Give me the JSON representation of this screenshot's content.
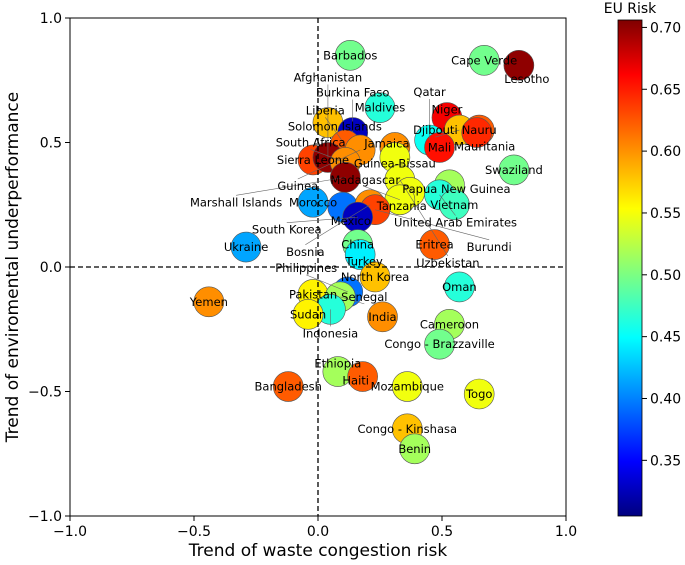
{
  "chart_data": {
    "type": "scatter",
    "xlabel": "Trend of waste congestion risk",
    "ylabel": "Trend of enviromental underperformance",
    "xlim": [
      -1,
      1
    ],
    "ylim": [
      -1,
      1
    ],
    "xticks": [
      "−1.0",
      "−0.5",
      "0.0",
      "0.5",
      "1.0"
    ],
    "yticks": [
      "−1.0",
      "−0.5",
      "0.0",
      "0.5",
      "1.0"
    ],
    "reference_lines": {
      "x": 0,
      "y": 0,
      "style": "dashed"
    },
    "colorbar": {
      "title": "EU Risk",
      "range": [
        0.305,
        0.706
      ],
      "colormap": "jet",
      "ticks": [
        "0.35",
        "0.40",
        "0.45",
        "0.50",
        "0.55",
        "0.60",
        "0.65",
        "0.70"
      ]
    },
    "points": [
      {
        "label": "Barbados",
        "x": 0.13,
        "y": 0.85,
        "risk": 0.5
      },
      {
        "label": "Cape Verde",
        "x": 0.67,
        "y": 0.83,
        "risk": 0.5
      },
      {
        "label": "Lesotho",
        "x": 0.81,
        "y": 0.81,
        "risk": 0.7
      },
      {
        "label": "Maldives",
        "x": 0.25,
        "y": 0.64,
        "risk": 0.47
      },
      {
        "label": "Solomon Islands",
        "x": 0.04,
        "y": 0.58,
        "risk": 0.58
      },
      {
        "label": "Niger",
        "x": 0.52,
        "y": 0.6,
        "risk": 0.66
      },
      {
        "label": "Djibouti",
        "x": 0.57,
        "y": 0.55,
        "risk": 0.58
      },
      {
        "label": "Nauru",
        "x": 0.65,
        "y": 0.55,
        "risk": 0.62
      },
      {
        "label": "Mauritania",
        "x": 0.64,
        "y": 0.54,
        "risk": 0.64
      },
      {
        "label": "Qatar",
        "x": 0.45,
        "y": 0.51,
        "risk": 0.46
      },
      {
        "label": "Mali",
        "x": 0.49,
        "y": 0.48,
        "risk": 0.65
      },
      {
        "label": "Burkina Faso",
        "x": 0.14,
        "y": 0.54,
        "risk": 0.33
      },
      {
        "label": "Liberia",
        "x": 0.11,
        "y": 0.49,
        "risk": 0.62
      },
      {
        "label": "Guinea",
        "x": 0.17,
        "y": 0.47,
        "risk": 0.6
      },
      {
        "label": "Guinea-Bissau",
        "x": 0.31,
        "y": 0.48,
        "risk": 0.6
      },
      {
        "label": "Jamaica",
        "x": 0.31,
        "y": 0.44,
        "risk": 0.55
      },
      {
        "label": "Sierra Leone",
        "x": -0.02,
        "y": 0.43,
        "risk": 0.63
      },
      {
        "label": "Afghanistan",
        "x": 0.04,
        "y": 0.44,
        "risk": 0.7
      },
      {
        "label": "South Africa",
        "x": 0.11,
        "y": 0.42,
        "risk": 0.6
      },
      {
        "label": "Marshall Islands",
        "x": 0.11,
        "y": 0.36,
        "risk": 0.7
      },
      {
        "label": "Swaziland",
        "x": 0.79,
        "y": 0.39,
        "risk": 0.5
      },
      {
        "label": "Uzbekistan",
        "x": 0.33,
        "y": 0.35,
        "risk": 0.55
      },
      {
        "label": "Papua New Guinea",
        "x": 0.53,
        "y": 0.33,
        "risk": 0.52
      },
      {
        "label": "Tanzania",
        "x": 0.37,
        "y": 0.3,
        "risk": 0.55
      },
      {
        "label": "United Arab Emirates",
        "x": 0.49,
        "y": 0.29,
        "risk": 0.47
      },
      {
        "label": "Madagascar",
        "x": 0.33,
        "y": 0.27,
        "risk": 0.55
      },
      {
        "label": "Vietnam",
        "x": 0.55,
        "y": 0.25,
        "risk": 0.48
      },
      {
        "label": "Morocco",
        "x": -0.02,
        "y": 0.26,
        "risk": 0.42
      },
      {
        "label": "Mexico",
        "x": 0.1,
        "y": 0.24,
        "risk": 0.4
      },
      {
        "label": "Bosnia",
        "x": 0.21,
        "y": 0.25,
        "risk": 0.6
      },
      {
        "label": "Burundi",
        "x": 0.23,
        "y": 0.23,
        "risk": 0.63
      },
      {
        "label": "South Korea",
        "x": 0.16,
        "y": 0.2,
        "risk": 0.33
      },
      {
        "label": "Ukraine",
        "x": -0.29,
        "y": 0.08,
        "risk": 0.42
      },
      {
        "label": "China",
        "x": 0.16,
        "y": 0.09,
        "risk": 0.5
      },
      {
        "label": "Turkey",
        "x": 0.17,
        "y": 0.05,
        "risk": 0.45
      },
      {
        "label": "Eritrea",
        "x": 0.47,
        "y": 0.09,
        "risk": 0.62
      },
      {
        "label": "North Korea",
        "x": 0.23,
        "y": -0.04,
        "risk": 0.58
      },
      {
        "label": "Oman",
        "x": 0.57,
        "y": -0.08,
        "risk": 0.47
      },
      {
        "label": "Philippines",
        "x": 0.12,
        "y": -0.1,
        "risk": 0.4
      },
      {
        "label": "Pakistan",
        "x": -0.02,
        "y": -0.11,
        "risk": 0.56
      },
      {
        "label": "Senegal",
        "x": 0.09,
        "y": -0.12,
        "risk": 0.52
      },
      {
        "label": "Indonesia",
        "x": 0.05,
        "y": -0.17,
        "risk": 0.47
      },
      {
        "label": "Sudan",
        "x": -0.04,
        "y": -0.19,
        "risk": 0.56
      },
      {
        "label": "Yemen",
        "x": -0.44,
        "y": -0.14,
        "risk": 0.6
      },
      {
        "label": "India",
        "x": 0.26,
        "y": -0.2,
        "risk": 0.6
      },
      {
        "label": "Cameroon",
        "x": 0.53,
        "y": -0.23,
        "risk": 0.52
      },
      {
        "label": "Congo - Brazzaville",
        "x": 0.49,
        "y": -0.31,
        "risk": 0.5
      },
      {
        "label": "Ethiopia",
        "x": 0.08,
        "y": -0.42,
        "risk": 0.52
      },
      {
        "label": "Haiti",
        "x": 0.18,
        "y": -0.44,
        "risk": 0.62
      },
      {
        "label": "Bangladesh",
        "x": -0.12,
        "y": -0.48,
        "risk": 0.62
      },
      {
        "label": "Mozambique",
        "x": 0.36,
        "y": -0.48,
        "risk": 0.55
      },
      {
        "label": "Togo",
        "x": 0.65,
        "y": -0.51,
        "risk": 0.55
      },
      {
        "label": "Congo - Kinshasa",
        "x": 0.36,
        "y": -0.65,
        "risk": 0.58
      },
      {
        "label": "Benin",
        "x": 0.39,
        "y": -0.73,
        "risk": 0.52
      }
    ]
  }
}
